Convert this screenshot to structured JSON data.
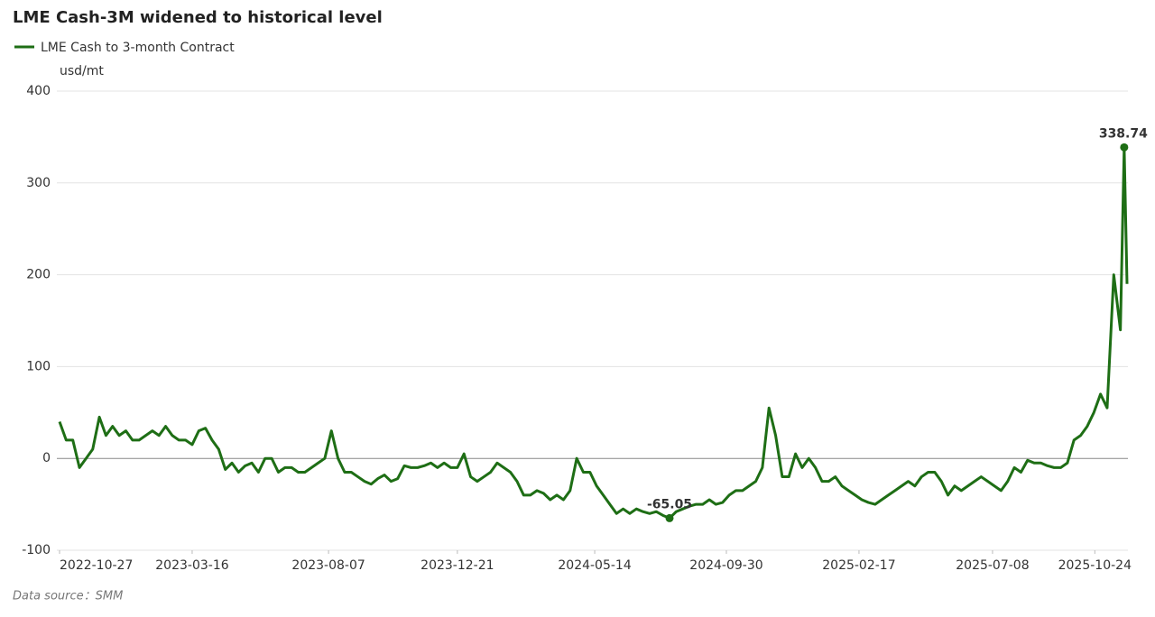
{
  "chart_data": {
    "type": "line",
    "title": "LME Cash-3M widened to historical level",
    "y_unit": "usd/mt",
    "source": "Data source：SMM",
    "x": [
      "2022-10-27",
      "2022-11-03",
      "2022-11-10",
      "2022-11-17",
      "2022-11-24",
      "2022-12-01",
      "2022-12-08",
      "2022-12-15",
      "2022-12-22",
      "2022-12-29",
      "2023-01-05",
      "2023-01-12",
      "2023-01-19",
      "2023-01-26",
      "2023-02-02",
      "2023-02-09",
      "2023-02-16",
      "2023-02-23",
      "2023-03-02",
      "2023-03-09",
      "2023-03-16",
      "2023-03-23",
      "2023-03-30",
      "2023-04-06",
      "2023-04-13",
      "2023-04-20",
      "2023-04-27",
      "2023-05-04",
      "2023-05-11",
      "2023-05-18",
      "2023-05-25",
      "2023-06-01",
      "2023-06-08",
      "2023-06-15",
      "2023-06-22",
      "2023-06-29",
      "2023-07-06",
      "2023-07-13",
      "2023-07-20",
      "2023-07-27",
      "2023-08-03",
      "2023-08-10",
      "2023-08-17",
      "2023-08-24",
      "2023-08-31",
      "2023-09-07",
      "2023-09-14",
      "2023-09-21",
      "2023-09-28",
      "2023-10-05",
      "2023-10-12",
      "2023-10-19",
      "2023-10-26",
      "2023-11-02",
      "2023-11-09",
      "2023-11-16",
      "2023-11-23",
      "2023-11-30",
      "2023-12-07",
      "2023-12-14",
      "2023-12-21",
      "2023-12-28",
      "2024-01-04",
      "2024-01-11",
      "2024-01-18",
      "2024-01-25",
      "2024-02-01",
      "2024-02-08",
      "2024-02-15",
      "2024-02-22",
      "2024-02-29",
      "2024-03-07",
      "2024-03-14",
      "2024-03-21",
      "2024-03-28",
      "2024-04-04",
      "2024-04-11",
      "2024-04-18",
      "2024-04-25",
      "2024-05-02",
      "2024-05-09",
      "2024-05-16",
      "2024-05-23",
      "2024-05-30",
      "2024-06-06",
      "2024-06-13",
      "2024-06-20",
      "2024-06-27",
      "2024-07-04",
      "2024-07-11",
      "2024-07-18",
      "2024-07-25",
      "2024-08-01",
      "2024-08-08",
      "2024-08-15",
      "2024-08-22",
      "2024-08-29",
      "2024-09-05",
      "2024-09-12",
      "2024-09-19",
      "2024-09-26",
      "2024-10-03",
      "2024-10-10",
      "2024-10-17",
      "2024-10-24",
      "2024-10-31",
      "2024-11-07",
      "2024-11-14",
      "2024-11-21",
      "2024-11-28",
      "2024-12-05",
      "2024-12-12",
      "2024-12-19",
      "2024-12-26",
      "2025-01-02",
      "2025-01-09",
      "2025-01-16",
      "2025-01-23",
      "2025-01-30",
      "2025-02-06",
      "2025-02-13",
      "2025-02-20",
      "2025-02-27",
      "2025-03-06",
      "2025-03-13",
      "2025-03-20",
      "2025-03-27",
      "2025-04-03",
      "2025-04-10",
      "2025-04-17",
      "2025-04-24",
      "2025-05-01",
      "2025-05-08",
      "2025-05-15",
      "2025-05-22",
      "2025-05-29",
      "2025-06-05",
      "2025-06-12",
      "2025-06-19",
      "2025-06-26",
      "2025-07-03",
      "2025-07-10",
      "2025-07-17",
      "2025-07-24",
      "2025-07-31",
      "2025-08-07",
      "2025-08-14",
      "2025-08-21",
      "2025-08-28",
      "2025-09-04",
      "2025-09-11",
      "2025-09-18",
      "2025-09-25",
      "2025-10-02",
      "2025-10-09",
      "2025-10-16",
      "2025-10-23",
      "2025-10-30",
      "2025-11-06",
      "2025-11-13",
      "2025-11-20",
      "2025-11-24",
      "2025-11-27"
    ],
    "series": [
      {
        "name": "LME Cash to 3-month Contract",
        "color": "#1e6e15",
        "values": [
          40,
          20,
          20,
          -10,
          0,
          10,
          45,
          25,
          35,
          25,
          30,
          20,
          20,
          25,
          30,
          25,
          35,
          25,
          20,
          20,
          15,
          30,
          33,
          20,
          10,
          -12,
          -5,
          -15,
          -8,
          -5,
          -15,
          0,
          0,
          -15,
          -10,
          -10,
          -15,
          -15,
          -10,
          -5,
          0,
          30,
          0,
          -15,
          -15,
          -20,
          -25,
          -28,
          -22,
          -18,
          -25,
          -22,
          -8,
          -10,
          -10,
          -8,
          -5,
          -10,
          -5,
          -10,
          -10,
          5,
          -20,
          -25,
          -20,
          -15,
          -5,
          -10,
          -15,
          -25,
          -40,
          -40,
          -35,
          -38,
          -45,
          -40,
          -45,
          -35,
          0,
          -15,
          -15,
          -30,
          -40,
          -50,
          -60,
          -55,
          -60,
          -55,
          -58,
          -60,
          -58,
          -62,
          -65.05,
          -58,
          -55,
          -52,
          -50,
          -50,
          -45,
          -50,
          -48,
          -40,
          -35,
          -35,
          -30,
          -25,
          -10,
          55,
          25,
          -20,
          -20,
          5,
          -10,
          0,
          -10,
          -25,
          -25,
          -20,
          -30,
          -35,
          -40,
          -45,
          -48,
          -50,
          -45,
          -40,
          -35,
          -30,
          -25,
          -30,
          -20,
          -15,
          -15,
          -25,
          -40,
          -30,
          -35,
          -30,
          -25,
          -20,
          -25,
          -30,
          -35,
          -25,
          -10,
          -15,
          -2,
          -5,
          -5,
          -8,
          -10,
          -10,
          -5,
          20,
          25,
          35,
          50,
          70,
          55,
          200,
          140,
          338.74,
          190
        ]
      }
    ],
    "xlim": [
      "2022-10-27",
      "2025-11-27"
    ],
    "xticks": [
      "2022-10-27",
      "2023-03-16",
      "2023-08-07",
      "2023-12-21",
      "2024-05-14",
      "2024-09-30",
      "2025-02-17",
      "2025-07-08",
      "2025-10-24"
    ],
    "ylim": [
      -100,
      400
    ],
    "yticks": [
      -100,
      0,
      100,
      200,
      300,
      400
    ],
    "grid": true,
    "mark_extremes": true,
    "legend": "top-left"
  }
}
